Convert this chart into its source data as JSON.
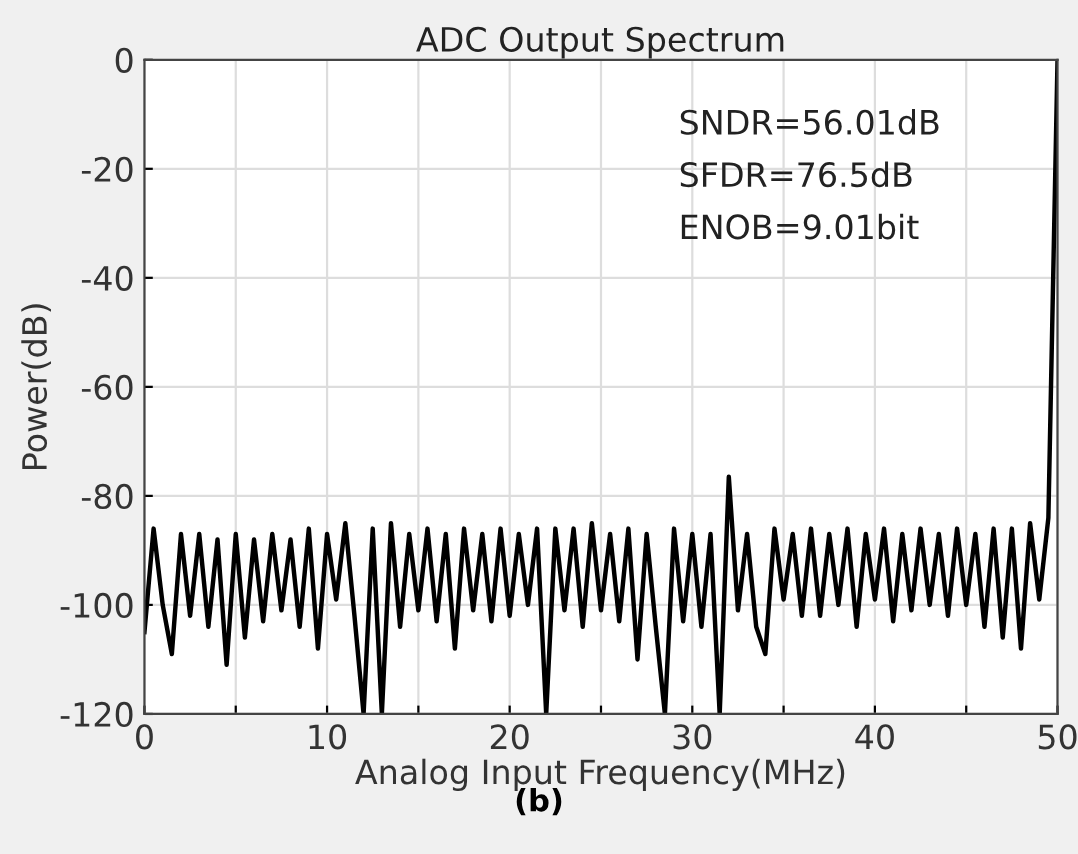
{
  "chart_data": {
    "type": "line",
    "title": "ADC Output Spectrum",
    "xlabel": "Analog Input Frequency(MHz)",
    "ylabel": "Power(dB)",
    "annotations": [
      "SNDR=56.01dB",
      "SFDR=76.5dB",
      "ENOB=9.01bit",
      "(b)"
    ],
    "x": [
      0,
      0.5,
      1,
      1.5,
      2,
      2.5,
      3,
      3.5,
      4,
      4.5,
      5,
      5.5,
      6,
      6.5,
      7,
      7.5,
      8,
      8.5,
      9,
      9.5,
      10,
      10.5,
      11,
      11.5,
      12,
      12.5,
      13,
      13.5,
      14,
      14.5,
      15,
      15.5,
      16,
      16.5,
      17,
      17.5,
      18,
      18.5,
      19,
      19.5,
      20,
      20.5,
      21,
      21.5,
      22,
      22.5,
      23,
      23.5,
      24,
      24.5,
      25,
      25.5,
      26,
      26.5,
      27,
      27.5,
      28,
      28.5,
      29,
      29.5,
      30,
      30.5,
      31,
      31.5,
      32,
      32.5,
      33,
      33.5,
      34,
      34.5,
      35,
      35.5,
      36,
      36.5,
      37,
      37.5,
      38,
      38.5,
      39,
      39.5,
      40,
      40.5,
      41,
      41.5,
      42,
      42.5,
      43,
      43.5,
      44,
      44.5,
      45,
      45.5,
      46,
      46.5,
      47,
      47.5,
      48,
      48.5,
      49,
      49.5,
      50
    ],
    "series": [
      {
        "color": "#000000",
        "values": [
          -105,
          -86,
          -100,
          -109,
          -87,
          -102,
          -87,
          -104,
          -88,
          -111,
          -87,
          -106,
          -88,
          -103,
          -87,
          -101,
          -88,
          -104,
          -86,
          -108,
          -87,
          -99,
          -85,
          -102,
          -120,
          -86,
          -120,
          -85,
          -104,
          -87,
          -101,
          -86,
          -103,
          -87,
          -108,
          -86,
          -101,
          -87,
          -103,
          -86,
          -102,
          -87,
          -100,
          -86,
          -120,
          -86,
          -101,
          -86,
          -104,
          -85,
          -101,
          -87,
          -103,
          -86,
          -110,
          -87,
          -104,
          -120,
          -86,
          -103,
          -87,
          -104,
          -87,
          -120,
          -76.5,
          -101,
          -87,
          -104,
          -109,
          -86,
          -99,
          -87,
          -102,
          -86,
          -102,
          -87,
          -100,
          -86,
          -104,
          -87,
          -99,
          -86,
          -103,
          -87,
          -101,
          -86,
          -100,
          -87,
          -102,
          -86,
          -100,
          -87,
          -104,
          -86,
          -106,
          -86,
          -108,
          -85,
          -99,
          -84,
          0
        ]
      }
    ],
    "xlim": [
      0,
      50
    ],
    "ylim": [
      -120,
      0
    ],
    "xticks": [
      0,
      {
        "value": 5,
        "label": null
      },
      10,
      {
        "value": 15,
        "label": null
      },
      20,
      {
        "value": 25,
        "label": null
      },
      30,
      {
        "value": 35,
        "label": null
      },
      40,
      {
        "value": 45,
        "label": null
      },
      50
    ],
    "yticks": [
      -120,
      -100,
      -80,
      -60,
      -40,
      -20,
      0
    ],
    "grid": true,
    "line_style": "solid",
    "marker": "none"
  }
}
